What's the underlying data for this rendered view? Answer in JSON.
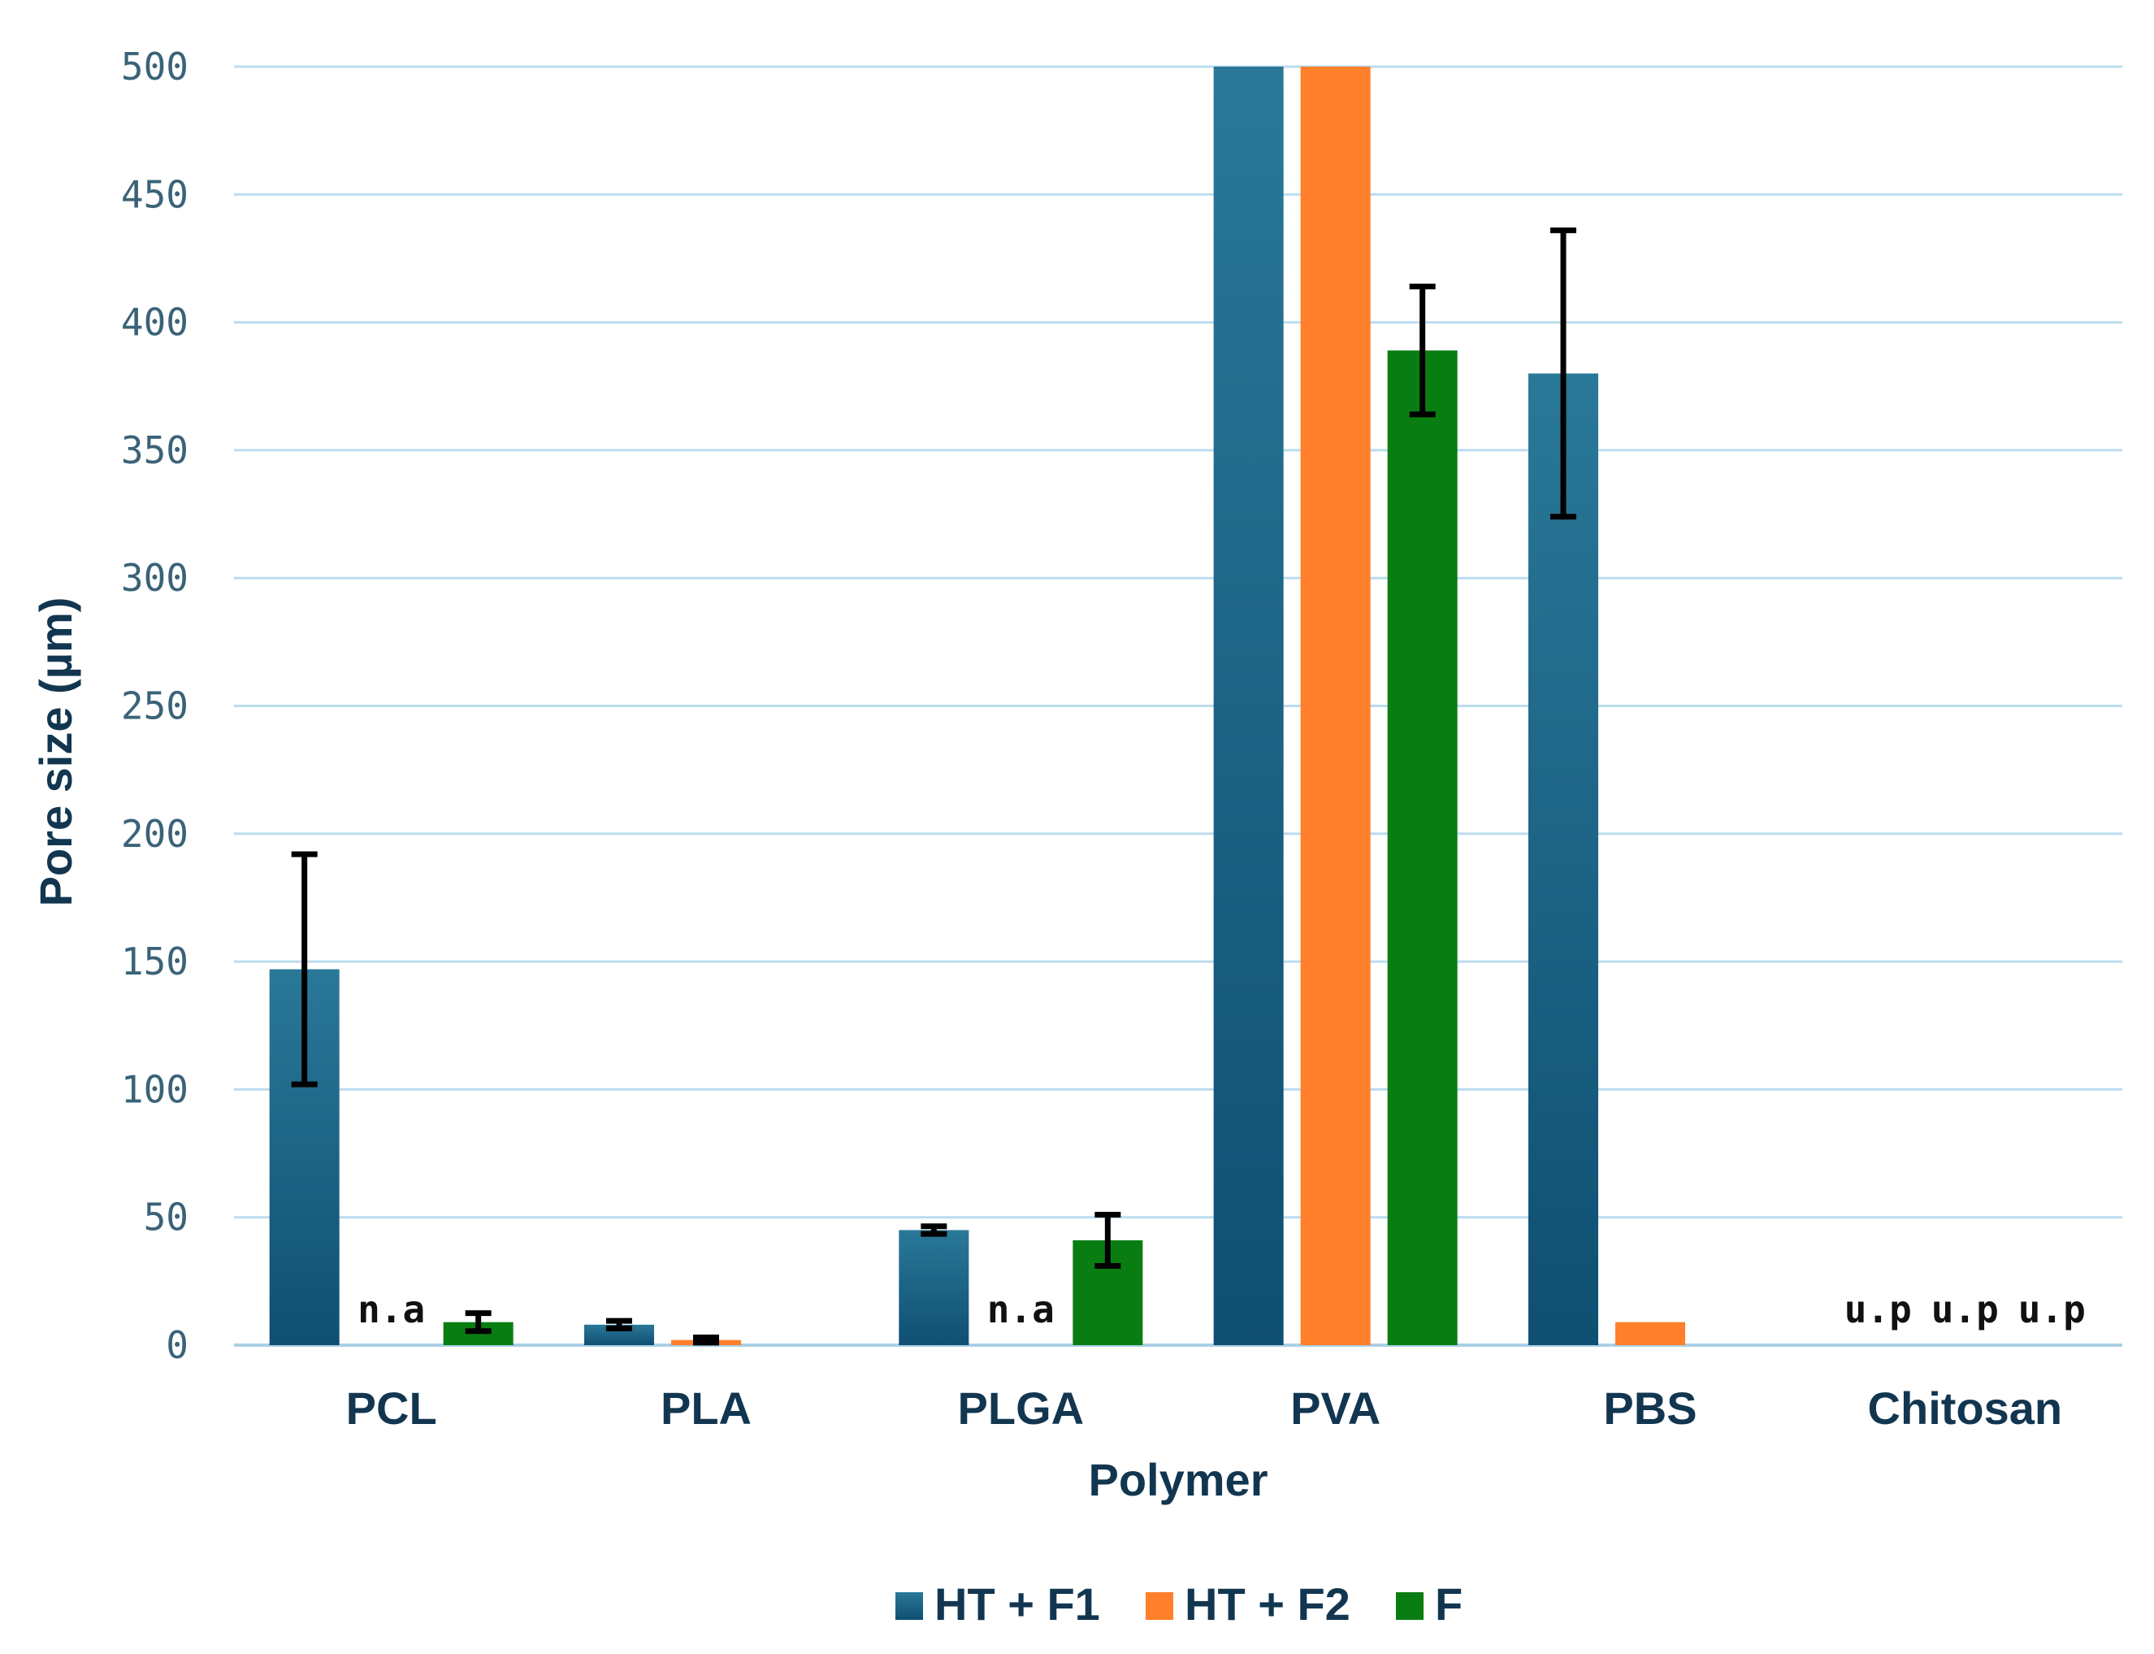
{
  "chart_data": {
    "type": "bar",
    "title": "",
    "xlabel": "Polymer",
    "ylabel": "Pore size (µm)",
    "ylim": [
      0,
      500
    ],
    "yticks": [
      0,
      50,
      100,
      150,
      200,
      250,
      300,
      350,
      400,
      450,
      500
    ],
    "grid": true,
    "legend_position": "bottom",
    "categories": [
      "PCL",
      "PLA",
      "PLGA",
      "PVA",
      "PBS",
      "Chitosan"
    ],
    "series": [
      {
        "name": "HT + F1",
        "color": "#1f6a8c",
        "values": [
          147,
          8,
          45,
          500,
          380,
          0
        ],
        "errors": [
          45,
          1.5,
          1.5,
          null,
          56,
          null
        ]
      },
      {
        "name": "HT + F2",
        "color": "#ff7f2a",
        "values": [
          0,
          2,
          0,
          500,
          9,
          0
        ],
        "errors": [
          null,
          1,
          null,
          null,
          null,
          null
        ]
      },
      {
        "name": "F",
        "color": "#0a7d12",
        "values": [
          9,
          0,
          41,
          389,
          0,
          0
        ],
        "errors": [
          3.5,
          null,
          10,
          25,
          null,
          null
        ]
      }
    ],
    "annotations": [
      {
        "text": "n.a",
        "category": "PCL",
        "series": "HT + F2"
      },
      {
        "text": "n.a",
        "category": "PLGA",
        "series": "HT + F2"
      },
      {
        "text": "u.p",
        "category": "Chitosan",
        "series": "HT + F1"
      },
      {
        "text": "u.p",
        "category": "Chitosan",
        "series": "HT + F2"
      },
      {
        "text": "u.p",
        "category": "Chitosan",
        "series": "F"
      }
    ]
  }
}
